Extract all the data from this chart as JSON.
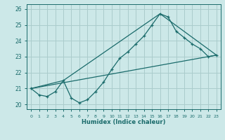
{
  "xlabel": "Humidex (Indice chaleur)",
  "bg_color": "#cce8e8",
  "grid_color": "#aacccc",
  "line_color": "#1a6b6b",
  "xlim": [
    -0.5,
    23.5
  ],
  "ylim": [
    19.7,
    26.3
  ],
  "yticks": [
    20,
    21,
    22,
    23,
    24,
    25,
    26
  ],
  "xticks": [
    0,
    1,
    2,
    3,
    4,
    5,
    6,
    7,
    8,
    9,
    10,
    11,
    12,
    13,
    14,
    15,
    16,
    17,
    18,
    19,
    20,
    21,
    22,
    23
  ],
  "line1_x": [
    0,
    1,
    2,
    3,
    4,
    5,
    6,
    7,
    8,
    9,
    10,
    11,
    12,
    13,
    14,
    15,
    16,
    17,
    18,
    19,
    20,
    21,
    22,
    23
  ],
  "line1_y": [
    21.0,
    20.6,
    20.5,
    20.8,
    21.5,
    20.4,
    20.1,
    20.3,
    20.8,
    21.4,
    22.2,
    22.9,
    23.3,
    23.8,
    24.3,
    25.0,
    25.7,
    25.5,
    24.6,
    24.2,
    23.8,
    23.5,
    23.0,
    23.1
  ],
  "line2_x": [
    0,
    23
  ],
  "line2_y": [
    21.0,
    23.1
  ],
  "line3_x": [
    0,
    4,
    16,
    23
  ],
  "line3_y": [
    21.0,
    21.5,
    25.7,
    23.1
  ]
}
